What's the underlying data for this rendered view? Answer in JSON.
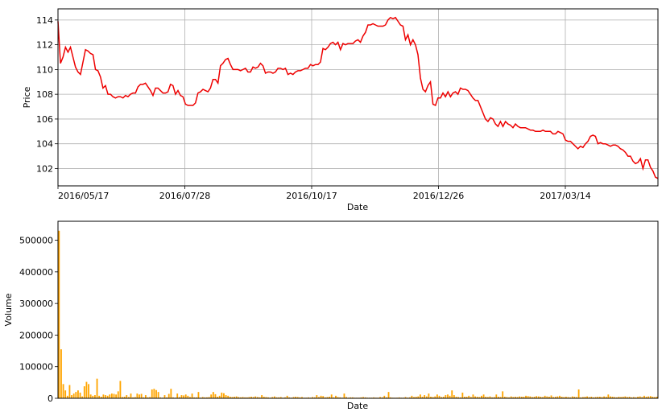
{
  "chart_data": [
    {
      "type": "line",
      "xlabel": "Date",
      "ylabel": "Price",
      "ylim": [
        100.6,
        114.9
      ],
      "yticks": [
        102,
        104,
        106,
        108,
        110,
        112,
        114
      ],
      "xtick_labels": [
        "2016/05/17",
        "2016/07/28",
        "2016/10/17",
        "2016/12/26",
        "2017/03/14"
      ],
      "grid": true,
      "color": "#ee0000",
      "series": [
        {
          "values": [
            113.9,
            110.5,
            111.0,
            111.8,
            111.4,
            111.8,
            111.0,
            110.2,
            109.8,
            109.6,
            110.6,
            111.6,
            111.5,
            111.3,
            111.2,
            110.0,
            109.9,
            109.4,
            108.5,
            108.7,
            108.0,
            108.0,
            107.8,
            107.7,
            107.8,
            107.8,
            107.7,
            107.9,
            107.8,
            108.0,
            108.1,
            108.1,
            108.6,
            108.8,
            108.8,
            108.9,
            108.6,
            108.3,
            107.9,
            108.5,
            108.5,
            108.3,
            108.1,
            108.1,
            108.2,
            108.8,
            108.7,
            108.0,
            108.3,
            107.9,
            107.8,
            107.2,
            107.1,
            107.1,
            107.1,
            107.3,
            108.1,
            108.2,
            108.4,
            108.3,
            108.2,
            108.5,
            109.2,
            109.2,
            108.9,
            110.3,
            110.5,
            110.8,
            110.9,
            110.4,
            110.0,
            110.0,
            110.0,
            109.9,
            110.0,
            110.1,
            109.8,
            109.8,
            110.2,
            110.1,
            110.2,
            110.5,
            110.3,
            109.7,
            109.8,
            109.8,
            109.7,
            109.8,
            110.1,
            110.1,
            110.0,
            110.1,
            109.6,
            109.7,
            109.6,
            109.8,
            109.9,
            109.9,
            110.0,
            110.1,
            110.1,
            110.4,
            110.3,
            110.4,
            110.4,
            110.6,
            111.7,
            111.6,
            111.8,
            112.1,
            112.2,
            112.0,
            112.2,
            111.6,
            112.1,
            112.0,
            112.1,
            112.1,
            112.1,
            112.3,
            112.4,
            112.2,
            112.7,
            113.0,
            113.6,
            113.6,
            113.7,
            113.6,
            113.5,
            113.5,
            113.5,
            113.6,
            114.0,
            114.2,
            114.1,
            114.2,
            113.9,
            113.6,
            113.5,
            112.4,
            112.8,
            112.0,
            112.4,
            112.0,
            111.2,
            109.3,
            108.4,
            108.2,
            108.7,
            109.0,
            107.2,
            107.1,
            107.7,
            107.7,
            108.1,
            107.8,
            108.2,
            107.8,
            108.1,
            108.2,
            108.0,
            108.5,
            108.4,
            108.4,
            108.3,
            108.0,
            107.7,
            107.5,
            107.5,
            107.0,
            106.5,
            106.0,
            105.8,
            106.1,
            106.0,
            105.6,
            105.4,
            105.8,
            105.4,
            105.8,
            105.6,
            105.5,
            105.3,
            105.6,
            105.4,
            105.3,
            105.3,
            105.3,
            105.2,
            105.1,
            105.1,
            105.0,
            105.0,
            105.0,
            105.1,
            105.0,
            105.0,
            105.0,
            104.8,
            104.8,
            105.0,
            104.9,
            104.8,
            104.3,
            104.2,
            104.2,
            104.0,
            103.8,
            103.6,
            103.8,
            103.7,
            104.0,
            104.2,
            104.6,
            104.7,
            104.6,
            104.0,
            104.1,
            104.0,
            104.0,
            103.9,
            103.8,
            103.9,
            103.9,
            103.8,
            103.6,
            103.5,
            103.3,
            103.0,
            103.0,
            102.6,
            102.4,
            102.5,
            102.8,
            102.0,
            102.7,
            102.7,
            102.1,
            101.8,
            101.3,
            101.2
          ]
        }
      ]
    },
    {
      "type": "bar",
      "xlabel": "Date",
      "ylabel": "Volume",
      "ylim": [
        0,
        560000
      ],
      "yticks": [
        0,
        100000,
        200000,
        300000,
        400000,
        500000
      ],
      "color": "#ffa500",
      "series": [
        {
          "values": [
            530000,
            155000,
            45000,
            25000,
            8000,
            42000,
            10000,
            15000,
            20000,
            25000,
            18000,
            6000,
            38000,
            52000,
            45000,
            12000,
            8000,
            10000,
            62000,
            8000,
            5000,
            12000,
            10000,
            8000,
            12000,
            15000,
            14000,
            12000,
            22000,
            55000,
            4000,
            5000,
            10000,
            4000,
            15000,
            3000,
            4000,
            15000,
            12000,
            14000,
            3000,
            10000,
            3000,
            4000,
            28000,
            30000,
            26000,
            20000,
            3000,
            2000,
            10000,
            3000,
            14000,
            30000,
            3000,
            2000,
            15000,
            4000,
            10000,
            9000,
            12000,
            8000,
            4000,
            15000,
            3000,
            3000,
            20000,
            2000,
            4000,
            3000,
            3000,
            4000,
            12000,
            20000,
            13000,
            5000,
            8000,
            18000,
            16000,
            10000,
            8000,
            5000,
            4000,
            5000,
            6000,
            4000,
            3000,
            4000,
            3000,
            3000,
            4000,
            5000,
            4000,
            6000,
            4000,
            3000,
            10000,
            5000,
            4000,
            3000,
            2000,
            4000,
            6000,
            3000,
            3000,
            4000,
            2000,
            3000,
            8000,
            3000,
            2000,
            4000,
            5000,
            4000,
            3000,
            4000,
            2000,
            2000,
            3000,
            2000,
            4000,
            3000,
            10000,
            4000,
            8000,
            7000,
            3000,
            4000,
            5000,
            12000,
            3000,
            8000,
            4000,
            3000,
            2000,
            15000,
            4000,
            2000,
            3000,
            3000,
            2000,
            2000,
            2000,
            3000,
            4000,
            3000,
            2000,
            2000,
            2000,
            3000,
            2000,
            2000,
            4000,
            3000,
            8000,
            3000,
            20000,
            3000,
            2000,
            2000,
            2000,
            3000,
            2000,
            2000,
            4000,
            2000,
            3000,
            8000,
            4000,
            5000,
            6000,
            12000,
            5000,
            10000,
            6000,
            15000,
            5000,
            4000,
            6000,
            12000,
            8000,
            4000,
            5000,
            10000,
            12000,
            8000,
            25000,
            10000,
            5000,
            4000,
            3000,
            18000,
            5000,
            5000,
            8000,
            4000,
            12000,
            6000,
            5000,
            4000,
            8000,
            12000,
            5000,
            4000,
            6000,
            3000,
            4000,
            12000,
            5000,
            4000,
            22000,
            5000,
            4000,
            3000,
            6000,
            4000,
            5000,
            4000,
            6000,
            5000,
            5000,
            8000,
            7000,
            6000,
            4000,
            5000,
            7000,
            6000,
            5000,
            4000,
            8000,
            6000,
            5000,
            9000,
            4000,
            5000,
            6000,
            8000,
            5000,
            4000,
            5000,
            4000,
            3000,
            6000,
            5000,
            4000,
            28000,
            3000,
            4000,
            5000,
            6000,
            4000,
            5000,
            3000,
            4000,
            5000,
            5000,
            4000,
            6000,
            5000,
            12000,
            6000,
            5000,
            4000,
            3000,
            5000,
            4000,
            5000,
            6000,
            4000,
            5000,
            3000,
            4000,
            3000,
            5000,
            6000,
            4000,
            8000,
            5000,
            6000,
            7000,
            5000,
            4000,
            5000
          ]
        }
      ]
    }
  ]
}
